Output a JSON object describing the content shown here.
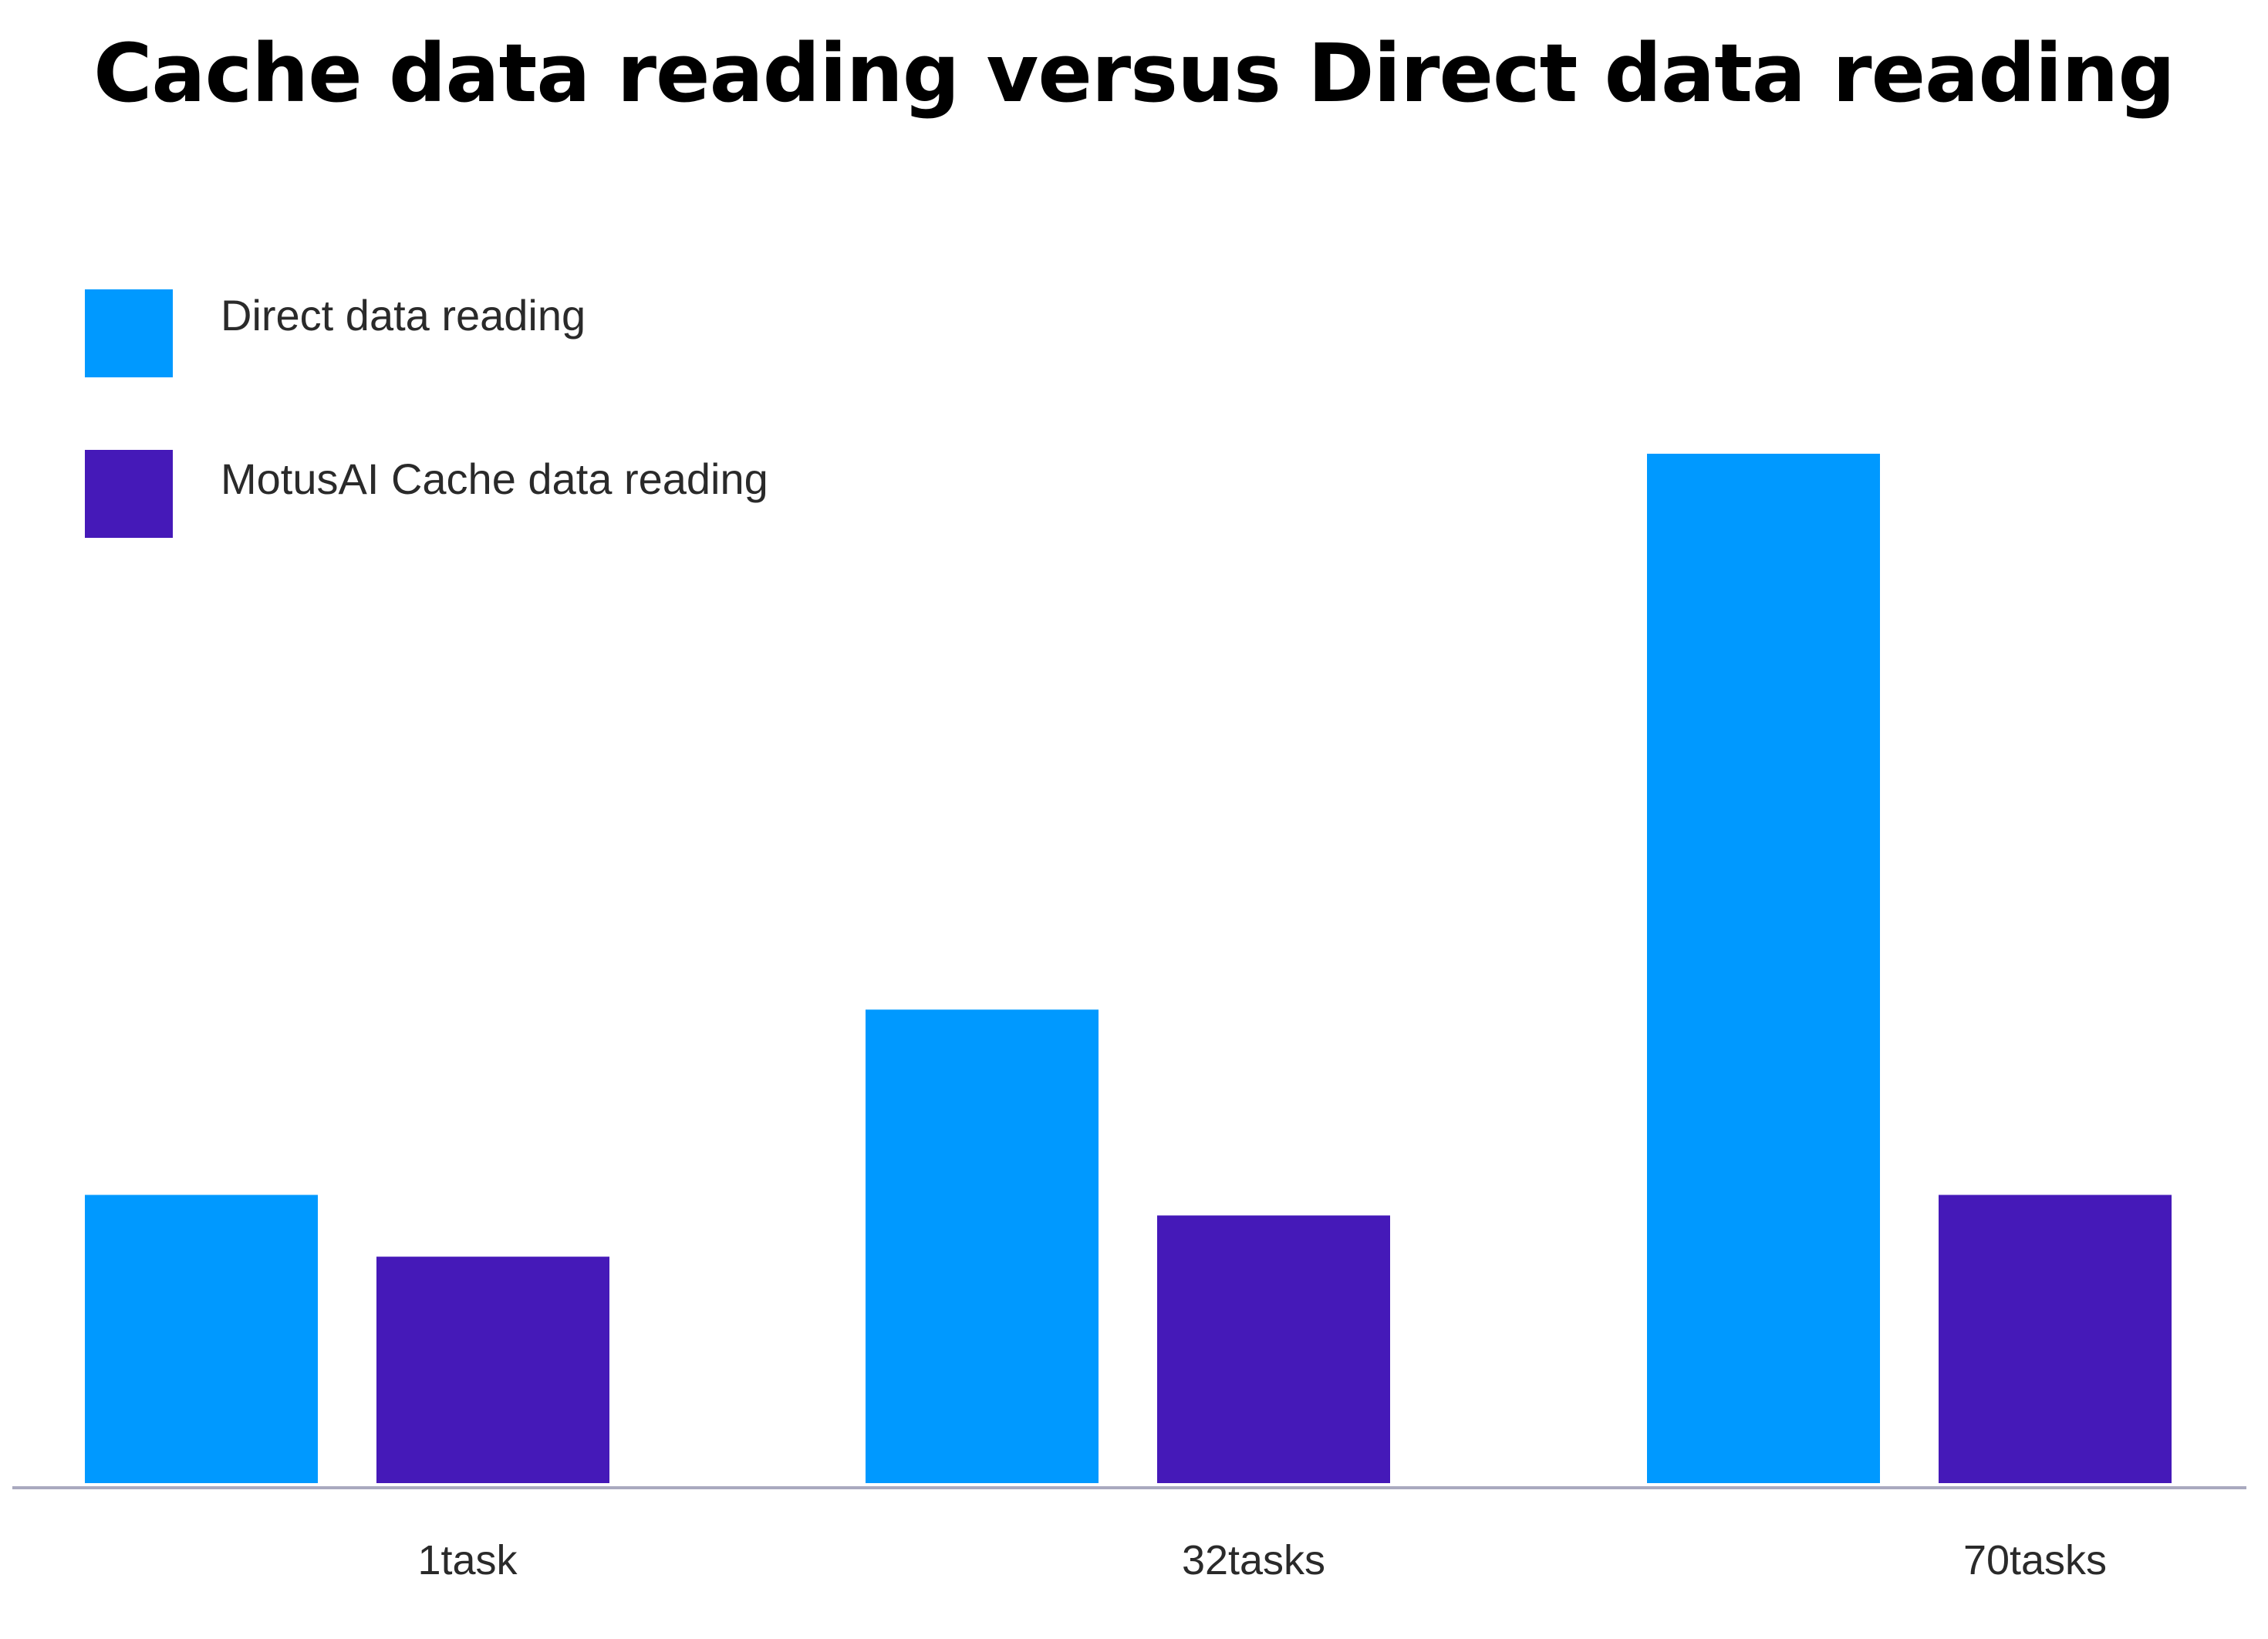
{
  "chart_data": {
    "type": "bar",
    "title": "Cache data reading versus Direct data reading",
    "xlabel": "",
    "ylabel": "",
    "categories": [
      "1task",
      "32tasks",
      "70tasks"
    ],
    "series": [
      {
        "name": "Direct data reading",
        "color": "#0099ff",
        "values": [
          28,
          46,
          100
        ]
      },
      {
        "name": "MotusAI Cache data reading",
        "color": "#4519b8",
        "values": [
          22,
          26,
          28
        ]
      }
    ],
    "ylim": [
      0,
      100
    ],
    "y_axis_visible": false,
    "grid": false,
    "legend_position": "top-left",
    "axis_color": "#a9a9bf"
  }
}
